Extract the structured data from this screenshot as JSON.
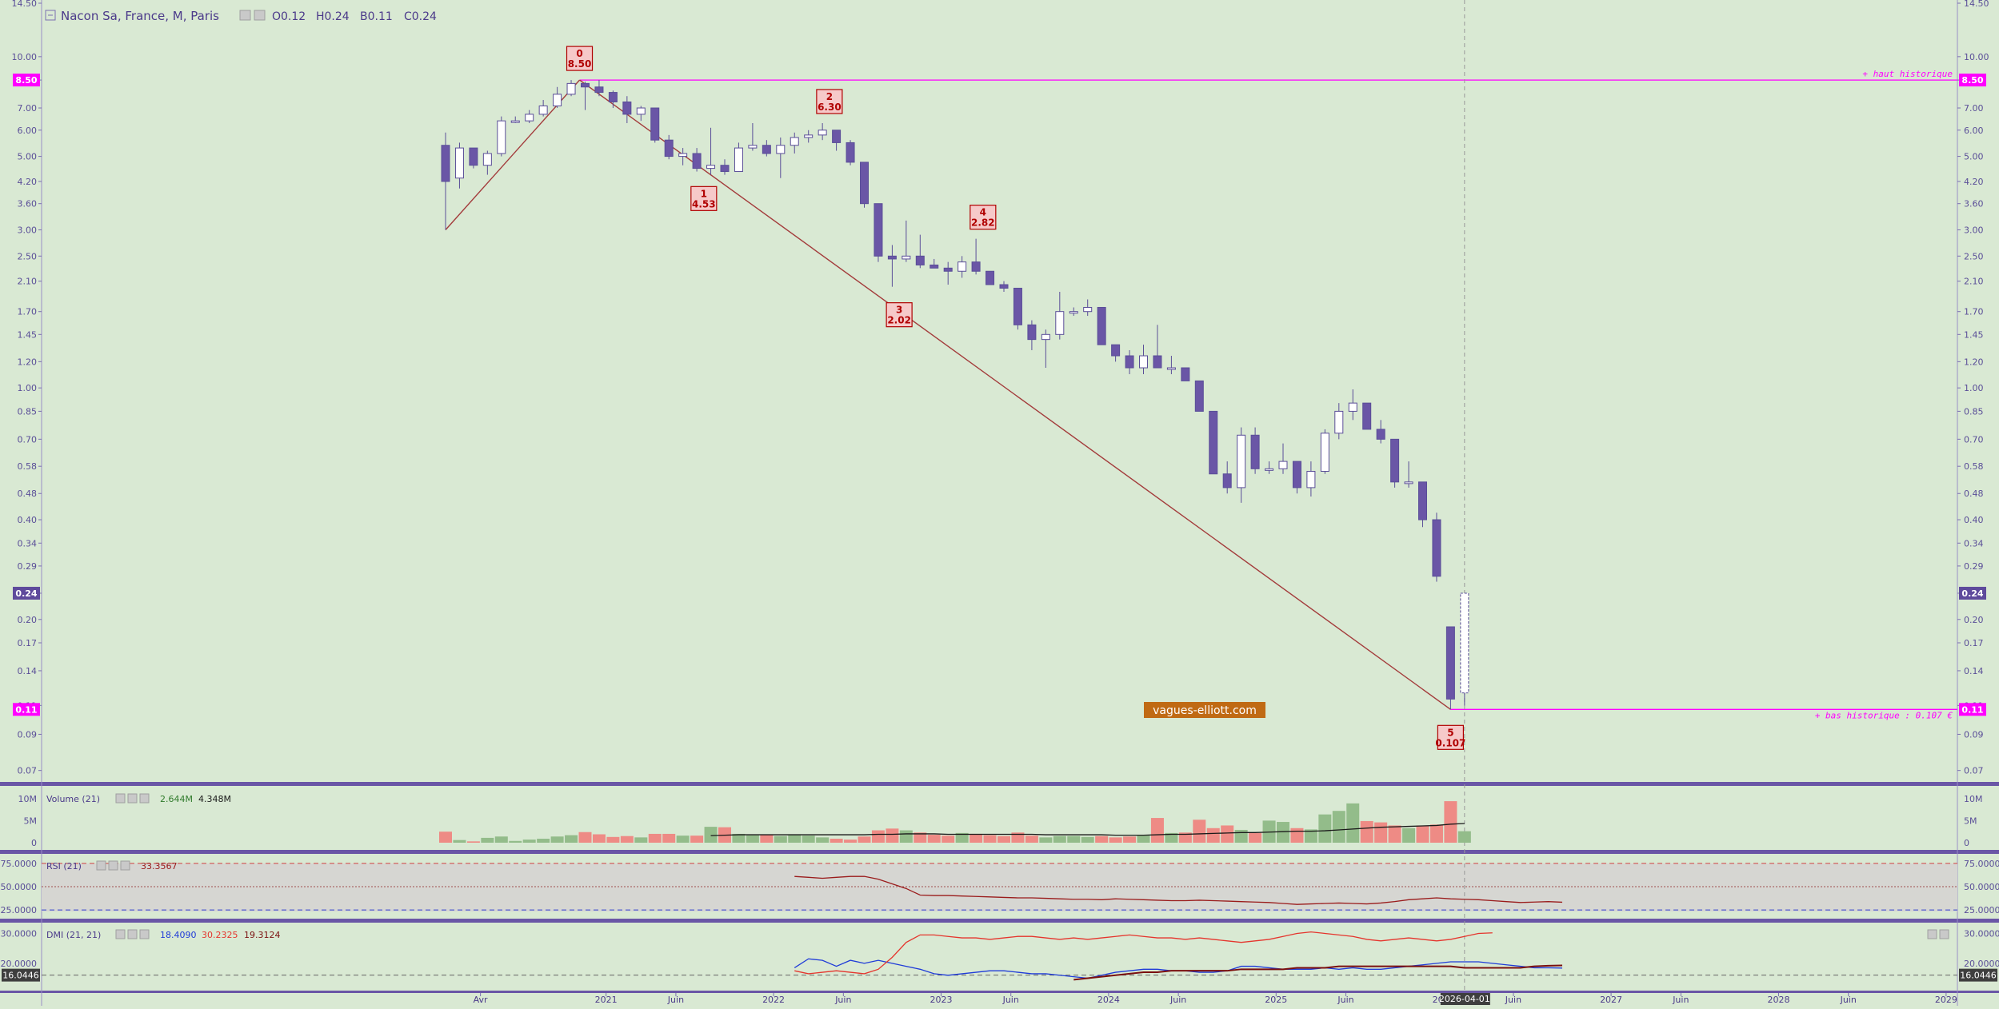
{
  "header": {
    "title": "Nacon Sa, France, M, Paris",
    "ohlc": [
      {
        "label": "O",
        "value": "0.12"
      },
      {
        "label": "H",
        "value": "0.24"
      },
      {
        "label": "B",
        "value": "0.11"
      },
      {
        "label": "C",
        "value": "0.24"
      }
    ]
  },
  "colors": {
    "background": "#d9e9d3",
    "bear": "#6a56a6",
    "bull": "#ffffff",
    "magenta": "#ff00ff",
    "trend": "#a33b3b",
    "panel_border": "#6a56a6",
    "label_fill": "#f6c9c9",
    "label_text": "#b00000",
    "vol_up": "#93bc8a",
    "vol_down": "#ee8b85",
    "dmi_plus": "#1f3bd8",
    "dmi_minus": "#e5352d",
    "adx": "#7a0f0f"
  },
  "watermark": "vagues-elliott.com",
  "chart_data": [
    {
      "type": "candlestick",
      "scale": "log",
      "interval": "monthly",
      "ylim": [
        0.065,
        14.5
      ],
      "y_ticks": [
        "14.50",
        "10.00",
        "8.50",
        "7.00",
        "6.00",
        "5.00",
        "4.20",
        "3.60",
        "3.00",
        "2.50",
        "2.10",
        "1.70",
        "1.45",
        "1.20",
        "1.00",
        "0.85",
        "0.70",
        "0.58",
        "0.48",
        "0.40",
        "0.34",
        "0.29",
        "0.24",
        "0.20",
        "0.17",
        "0.14",
        "0.11",
        "0.09",
        "0.07"
      ],
      "y_tick_values": [
        14.5,
        10,
        8.5,
        7,
        6,
        5,
        4.2,
        3.6,
        3,
        2.5,
        2.1,
        1.7,
        1.45,
        1.2,
        1,
        0.85,
        0.7,
        0.58,
        0.48,
        0.4,
        0.34,
        0.29,
        0.24,
        0.2,
        0.17,
        0.14,
        0.11,
        0.09,
        0.07
      ],
      "current_price": {
        "value": 0.24,
        "label": "0.24"
      },
      "historic_high": {
        "value": 8.5,
        "label": "8.50",
        "text": "+ haut historique"
      },
      "historic_low": {
        "value": 0.107,
        "label": "0.11",
        "text": "+ bas historique : 0.107 €"
      },
      "cursor_date": "2026-04-01",
      "x_labels": [
        {
          "text": "Avr",
          "m": 2.5
        },
        {
          "text": "2021",
          "m": 11.5
        },
        {
          "text": "Juin",
          "m": 16.5
        },
        {
          "text": "2022",
          "m": 23.5
        },
        {
          "text": "Juin",
          "m": 28.5
        },
        {
          "text": "2023",
          "m": 35.5
        },
        {
          "text": "Juin",
          "m": 40.5
        },
        {
          "text": "2024",
          "m": 47.5
        },
        {
          "text": "Juin",
          "m": 52.5
        },
        {
          "text": "2025",
          "m": 59.5
        },
        {
          "text": "Juin",
          "m": 64.5
        },
        {
          "text": "2026",
          "m": 71.5
        },
        {
          "text": "Juin",
          "m": 76.5
        },
        {
          "text": "2027",
          "m": 83.5
        },
        {
          "text": "Juin",
          "m": 88.5
        },
        {
          "text": "2028",
          "m": 95.5
        },
        {
          "text": "Juin",
          "m": 100.5
        },
        {
          "text": "2029",
          "m": 107.5
        }
      ],
      "candles": [
        [
          5.4,
          5.9,
          3.0,
          4.2
        ],
        [
          4.3,
          5.5,
          4.0,
          5.3
        ],
        [
          5.3,
          5.3,
          4.6,
          4.7
        ],
        [
          4.7,
          5.2,
          4.4,
          5.1
        ],
        [
          5.1,
          6.6,
          5.0,
          6.4
        ],
        [
          6.4,
          6.6,
          6.3,
          6.4
        ],
        [
          6.4,
          6.9,
          6.3,
          6.7
        ],
        [
          6.7,
          7.4,
          6.6,
          7.1
        ],
        [
          7.1,
          8.1,
          7.0,
          7.7
        ],
        [
          7.7,
          8.5,
          7.6,
          8.3
        ],
        [
          8.3,
          8.4,
          6.9,
          8.1
        ],
        [
          8.1,
          8.5,
          7.6,
          7.8
        ],
        [
          7.8,
          7.9,
          7.0,
          7.3
        ],
        [
          7.3,
          7.6,
          6.3,
          6.7
        ],
        [
          6.7,
          7.1,
          6.4,
          7.0
        ],
        [
          7.0,
          7.0,
          5.5,
          5.6
        ],
        [
          5.6,
          5.8,
          4.9,
          5.0
        ],
        [
          5.0,
          5.3,
          4.7,
          5.1
        ],
        [
          5.1,
          5.3,
          4.5,
          4.6
        ],
        [
          4.6,
          6.1,
          4.4,
          4.7
        ],
        [
          4.7,
          4.9,
          4.4,
          4.5
        ],
        [
          4.5,
          5.5,
          4.5,
          5.3
        ],
        [
          5.3,
          6.3,
          5.2,
          5.4
        ],
        [
          5.4,
          5.6,
          5.0,
          5.1
        ],
        [
          5.1,
          5.7,
          4.3,
          5.4
        ],
        [
          5.4,
          5.9,
          5.1,
          5.7
        ],
        [
          5.7,
          6.0,
          5.5,
          5.8
        ],
        [
          5.8,
          6.3,
          5.6,
          6.0
        ],
        [
          6.0,
          6.0,
          5.2,
          5.5
        ],
        [
          5.5,
          5.6,
          4.7,
          4.8
        ],
        [
          4.8,
          4.8,
          3.5,
          3.6
        ],
        [
          3.6,
          3.6,
          2.4,
          2.5
        ],
        [
          2.5,
          2.7,
          2.02,
          2.45
        ],
        [
          2.45,
          3.2,
          2.4,
          2.5
        ],
        [
          2.5,
          2.9,
          2.3,
          2.35
        ],
        [
          2.35,
          2.45,
          2.3,
          2.3
        ],
        [
          2.3,
          2.4,
          2.05,
          2.25
        ],
        [
          2.25,
          2.5,
          2.15,
          2.4
        ],
        [
          2.4,
          2.82,
          2.2,
          2.25
        ],
        [
          2.25,
          2.25,
          2.05,
          2.05
        ],
        [
          2.05,
          2.1,
          1.95,
          2.0
        ],
        [
          2.0,
          2.0,
          1.5,
          1.55
        ],
        [
          1.55,
          1.6,
          1.3,
          1.4
        ],
        [
          1.4,
          1.5,
          1.15,
          1.45
        ],
        [
          1.45,
          1.95,
          1.4,
          1.7
        ],
        [
          1.7,
          1.75,
          1.65,
          1.7
        ],
        [
          1.7,
          1.85,
          1.65,
          1.75
        ],
        [
          1.75,
          1.75,
          1.35,
          1.35
        ],
        [
          1.35,
          1.35,
          1.2,
          1.25
        ],
        [
          1.25,
          1.3,
          1.1,
          1.15
        ],
        [
          1.15,
          1.35,
          1.1,
          1.25
        ],
        [
          1.25,
          1.55,
          1.15,
          1.15
        ],
        [
          1.15,
          1.25,
          1.1,
          1.15
        ],
        [
          1.15,
          1.15,
          1.05,
          1.05
        ],
        [
          1.05,
          1.05,
          0.85,
          0.85
        ],
        [
          0.85,
          0.85,
          0.55,
          0.55
        ],
        [
          0.55,
          0.6,
          0.48,
          0.5
        ],
        [
          0.5,
          0.76,
          0.45,
          0.72
        ],
        [
          0.72,
          0.76,
          0.55,
          0.57
        ],
        [
          0.57,
          0.6,
          0.55,
          0.57
        ],
        [
          0.57,
          0.68,
          0.55,
          0.6
        ],
        [
          0.6,
          0.6,
          0.48,
          0.5
        ],
        [
          0.5,
          0.6,
          0.47,
          0.56
        ],
        [
          0.56,
          0.75,
          0.55,
          0.73
        ],
        [
          0.73,
          0.9,
          0.7,
          0.85
        ],
        [
          0.85,
          0.99,
          0.8,
          0.9
        ],
        [
          0.9,
          0.9,
          0.75,
          0.75
        ],
        [
          0.75,
          0.8,
          0.68,
          0.7
        ],
        [
          0.7,
          0.7,
          0.5,
          0.52
        ],
        [
          0.52,
          0.6,
          0.5,
          0.52
        ],
        [
          0.52,
          0.52,
          0.38,
          0.4
        ],
        [
          0.4,
          0.42,
          0.26,
          0.27
        ],
        [
          0.19,
          0.19,
          0.107,
          0.115
        ],
        [
          0.12,
          0.24,
          0.11,
          0.24
        ]
      ],
      "waves": [
        {
          "label": "0",
          "price": "8.50",
          "m": 9.6,
          "value": 8.5,
          "position": "above"
        },
        {
          "label": "1",
          "price": "4.53",
          "m": 18.5,
          "value": 4.53,
          "position": "below"
        },
        {
          "label": "2",
          "price": "6.30",
          "m": 27.5,
          "value": 6.3,
          "position": "above"
        },
        {
          "label": "3",
          "price": "2.02",
          "m": 32.5,
          "value": 2.02,
          "position": "below"
        },
        {
          "label": "4",
          "price": "2.82",
          "m": 38.5,
          "value": 2.82,
          "position": "above"
        },
        {
          "label": "5",
          "price": "0.107",
          "m": 72,
          "value": 0.107,
          "position": "below"
        }
      ],
      "trend_lines": [
        {
          "from": {
            "m": 0,
            "value": 3.0
          },
          "to": {
            "m": 9.6,
            "value": 8.5
          }
        },
        {
          "from": {
            "m": 9.6,
            "value": 8.5
          },
          "to": {
            "m": 72,
            "value": 0.107
          }
        }
      ]
    },
    {
      "type": "bar",
      "name": "Volume (21)",
      "legend_values": [
        "2.644M",
        "4.348M"
      ],
      "y_ticks": [
        "10M",
        "5M",
        "0"
      ],
      "y_tick_values": [
        10,
        5,
        0
      ],
      "ylim": [
        0,
        10.5
      ],
      "unit": "M",
      "values": [
        2.5,
        0.6,
        0.3,
        1.1,
        1.4,
        0.4,
        0.7,
        0.9,
        1.4,
        1.7,
        2.4,
        1.9,
        1.3,
        1.5,
        1.2,
        2.0,
        2.0,
        1.6,
        1.6,
        3.6,
        3.5,
        2.0,
        1.7,
        1.8,
        1.5,
        1.9,
        1.6,
        1.2,
        0.9,
        0.7,
        1.4,
        2.8,
        3.2,
        2.8,
        2.3,
        1.8,
        1.6,
        2.2,
        2.0,
        1.7,
        1.5,
        2.3,
        1.6,
        1.2,
        1.5,
        1.5,
        1.3,
        1.5,
        1.2,
        1.4,
        1.7,
        5.6,
        2.2,
        2.3,
        5.2,
        3.3,
        3.9,
        2.9,
        2.2,
        5.0,
        4.7,
        3.3,
        3.0,
        6.4,
        7.2,
        8.9,
        4.9,
        4.6,
        3.9,
        3.3,
        3.9,
        4.1,
        9.4,
        2.6
      ],
      "average": [
        null,
        null,
        null,
        null,
        null,
        null,
        null,
        null,
        null,
        null,
        null,
        null,
        null,
        null,
        null,
        null,
        null,
        null,
        null,
        1.6,
        1.7,
        1.8,
        1.8,
        1.8,
        1.8,
        1.8,
        1.8,
        1.8,
        1.8,
        1.8,
        1.8,
        1.9,
        1.9,
        2.0,
        2.0,
        2.0,
        1.9,
        1.9,
        1.9,
        1.9,
        1.9,
        1.9,
        1.9,
        1.8,
        1.8,
        1.8,
        1.8,
        1.8,
        1.7,
        1.7,
        1.7,
        1.8,
        1.9,
        1.9,
        2.0,
        2.1,
        2.2,
        2.3,
        2.3,
        2.4,
        2.5,
        2.6,
        2.6,
        2.7,
        2.9,
        3.1,
        3.3,
        3.5,
        3.6,
        3.7,
        3.8,
        3.9,
        4.2,
        4.35
      ]
    },
    {
      "type": "line",
      "name": "RSI (21)",
      "legend_values": [
        "33.3567"
      ],
      "y_ticks": [
        "75.0000",
        "50.0000",
        "25.0000"
      ],
      "y_tick_values": [
        75,
        50,
        25
      ],
      "ylim": [
        20,
        80
      ],
      "values": [
        null,
        null,
        null,
        null,
        null,
        null,
        null,
        null,
        null,
        null,
        null,
        null,
        null,
        null,
        null,
        null,
        null,
        null,
        null,
        null,
        null,
        null,
        null,
        null,
        null,
        61,
        60,
        59,
        60,
        61,
        61,
        58,
        53,
        48,
        41,
        40.5,
        40.5,
        40,
        39.5,
        39,
        38.5,
        38,
        38,
        37.5,
        37,
        36.5,
        36.5,
        36,
        37,
        36.5,
        36,
        35.5,
        35,
        35,
        35.5,
        35,
        34.5,
        34,
        33.5,
        33,
        32,
        31,
        31.5,
        32,
        32.5,
        32,
        31.5,
        32.5,
        34,
        36,
        37,
        38,
        37,
        36.5,
        36,
        35,
        34,
        33,
        33.5,
        34,
        33.36
      ]
    },
    {
      "type": "line",
      "name": "DMI (21, 21)",
      "legend_values": [
        "18.4090",
        "30.2325",
        "19.3124"
      ],
      "y_ticks": [
        "30.0000",
        "20.0000"
      ],
      "y_tick_values": [
        30,
        20
      ],
      "ylim": [
        13,
        32
      ],
      "current": {
        "value": 16.0446,
        "label": "16.0446"
      },
      "series": [
        {
          "name": "DI+",
          "values": [
            null,
            null,
            null,
            null,
            null,
            null,
            null,
            null,
            null,
            null,
            null,
            null,
            null,
            null,
            null,
            null,
            null,
            null,
            null,
            null,
            null,
            null,
            null,
            null,
            null,
            18.5,
            21.5,
            21,
            19,
            21,
            20,
            21,
            20,
            19,
            18,
            16.5,
            16,
            16.5,
            17,
            17.5,
            17.5,
            17,
            16.5,
            16.5,
            16,
            15.5,
            15,
            16,
            17,
            17.5,
            18,
            18,
            17.5,
            17.5,
            17,
            17,
            17.5,
            19,
            19,
            18.5,
            18,
            18,
            18,
            18.5,
            18,
            18.5,
            18,
            18,
            18.5,
            19,
            19.5,
            20,
            20.5,
            20.5,
            20.5,
            20,
            19.5,
            19,
            18.5,
            18.5,
            18.4
          ]
        },
        {
          "name": "DI-",
          "values": [
            null,
            null,
            null,
            null,
            null,
            null,
            null,
            null,
            null,
            null,
            null,
            null,
            null,
            null,
            null,
            null,
            null,
            null,
            null,
            null,
            null,
            null,
            null,
            null,
            null,
            17.5,
            16.5,
            17,
            17.5,
            17,
            16.5,
            18,
            22,
            27,
            29.5,
            29.5,
            29,
            28.5,
            28.5,
            28,
            28.5,
            29,
            29,
            28.5,
            28,
            28.5,
            28,
            28.5,
            29,
            29.5,
            29,
            28.5,
            28.5,
            28,
            28.5,
            28,
            27.5,
            27,
            27.5,
            28,
            29,
            30,
            30.5,
            30,
            29.5,
            29,
            28,
            27.5,
            28,
            28.5,
            28,
            27.5,
            28,
            29,
            30,
            30.2
          ]
        },
        {
          "name": "ADX",
          "values": [
            null,
            null,
            null,
            null,
            null,
            null,
            null,
            null,
            null,
            null,
            null,
            null,
            null,
            null,
            null,
            null,
            null,
            null,
            null,
            null,
            null,
            null,
            null,
            null,
            null,
            null,
            null,
            null,
            null,
            null,
            null,
            null,
            null,
            null,
            null,
            null,
            null,
            null,
            null,
            null,
            null,
            null,
            null,
            null,
            null,
            14.5,
            15,
            15.5,
            16,
            16.5,
            17,
            17,
            17.5,
            17.5,
            17.5,
            17.5,
            17.5,
            18,
            18,
            18,
            18,
            18.5,
            18.5,
            18.5,
            19,
            19,
            19,
            19,
            19,
            19,
            19,
            19,
            19,
            18.5,
            18.5,
            18.5,
            18.5,
            18.5,
            19,
            19.2,
            19.3
          ]
        }
      ]
    }
  ]
}
